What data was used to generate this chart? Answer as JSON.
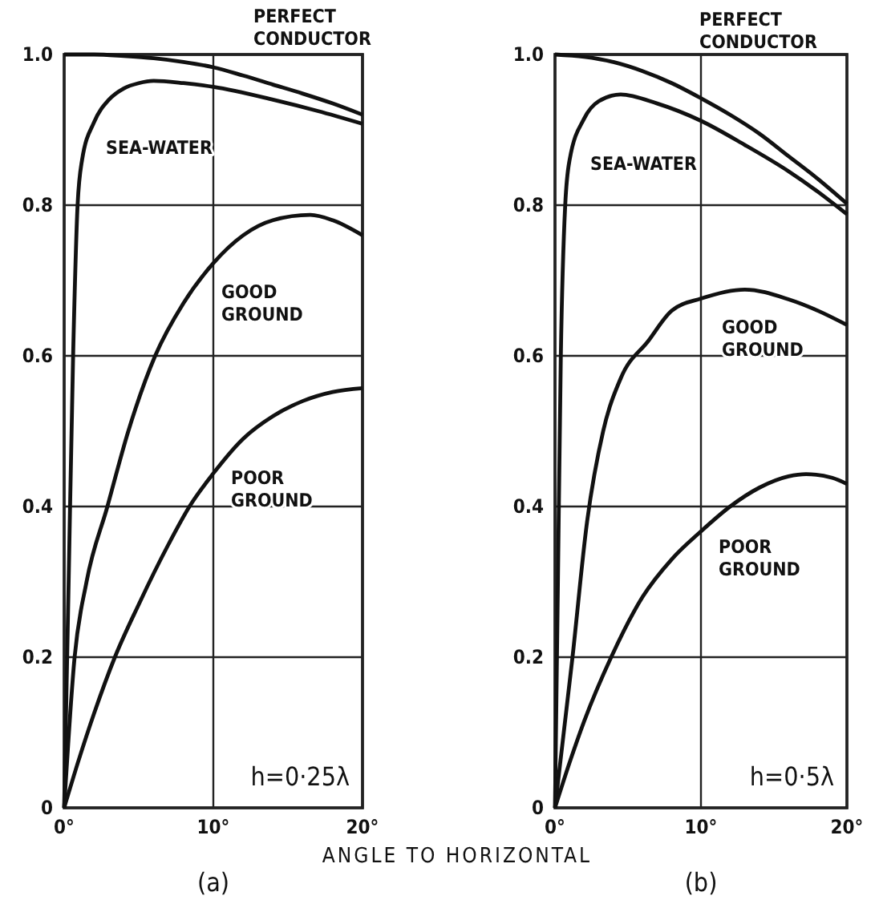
{
  "chart_data": [
    {
      "type": "line",
      "title": "(a)",
      "xlabel": "ANGLE TO HORIZONTAL",
      "xlim": [
        0,
        20
      ],
      "ylim": [
        0,
        1.0
      ],
      "xticks": [
        {
          "value": 0,
          "label": "0°"
        },
        {
          "value": 10,
          "label": "10°"
        },
        {
          "value": 20,
          "label": "20°"
        }
      ],
      "yticks": [
        0,
        0.2,
        0.4,
        0.6,
        0.8,
        {
          "value": 1.0,
          "label": "1.0"
        }
      ],
      "grid": true,
      "line_style": "solid",
      "annotations": [
        "h=0·25λ"
      ],
      "series": [
        {
          "name": "PERFECT CONDUCTOR",
          "color": "#111111",
          "x": [
            0,
            2,
            4,
            6,
            8,
            10,
            12,
            14,
            16,
            18,
            20
          ],
          "values": [
            1.0,
            1.0,
            0.998,
            0.995,
            0.99,
            0.983,
            0.972,
            0.96,
            0.948,
            0.935,
            0.92
          ]
        },
        {
          "name": "SEA-WATER",
          "color": "#111111",
          "x": [
            0,
            0.3,
            0.6,
            0.9,
            1.2,
            2,
            3,
            4,
            5,
            6,
            8,
            10,
            14,
            17,
            20
          ],
          "values": [
            0,
            0.3,
            0.6,
            0.8,
            0.86,
            0.91,
            0.94,
            0.955,
            0.962,
            0.965,
            0.962,
            0.957,
            0.94,
            0.925,
            0.908
          ]
        },
        {
          "name": "GOOD GROUND",
          "color": "#111111",
          "x": [
            0,
            0.7,
            1.5,
            2.9,
            4.3,
            6.1,
            8,
            10,
            12,
            14,
            16.5,
            18,
            20
          ],
          "values": [
            0,
            0.2,
            0.3,
            0.4,
            0.5,
            0.6,
            0.67,
            0.723,
            0.76,
            0.78,
            0.787,
            0.78,
            0.76
          ]
        },
        {
          "name": "POOR GROUND",
          "color": "#111111",
          "x": [
            0,
            1,
            2,
            3.4,
            5,
            7,
            8.4,
            10,
            12,
            14,
            16,
            18,
            20
          ],
          "values": [
            0,
            0.065,
            0.125,
            0.2,
            0.27,
            0.35,
            0.4,
            0.444,
            0.49,
            0.52,
            0.54,
            0.552,
            0.557
          ]
        }
      ]
    },
    {
      "type": "line",
      "title": "(b)",
      "xlim": [
        0,
        20
      ],
      "ylim": [
        0,
        1.0
      ],
      "xticks": [
        {
          "value": 0,
          "label": "0°"
        },
        {
          "value": 10,
          "label": "10°"
        },
        {
          "value": 20,
          "label": "20°"
        }
      ],
      "yticks": [
        0,
        0.2,
        0.4,
        0.6,
        0.8,
        {
          "value": 1.0,
          "label": "1.0"
        }
      ],
      "grid": true,
      "line_style": "solid",
      "annotations": [
        "h=0·5λ"
      ],
      "series": [
        {
          "name": "PERFECT CONDUCTOR",
          "color": "#111111",
          "x": [
            0,
            2,
            4,
            6,
            8,
            10,
            12,
            14,
            16,
            18,
            20
          ],
          "values": [
            1.0,
            0.997,
            0.99,
            0.978,
            0.962,
            0.942,
            0.92,
            0.895,
            0.865,
            0.835,
            0.802
          ]
        },
        {
          "name": "SEA-WATER",
          "color": "#111111",
          "x": [
            0,
            0.2,
            0.4,
            0.7,
            1,
            2,
            3,
            4.5,
            7,
            10,
            13,
            16,
            18,
            20
          ],
          "values": [
            0,
            0.3,
            0.6,
            0.8,
            0.86,
            0.915,
            0.938,
            0.947,
            0.935,
            0.912,
            0.88,
            0.845,
            0.818,
            0.788
          ]
        },
        {
          "name": "GOOD GROUND",
          "color": "#111111",
          "x": [
            0,
            1.2,
            2.2,
            3.3,
            4.5,
            6.4,
            8,
            10,
            13,
            16,
            18,
            20
          ],
          "values": [
            0,
            0.2,
            0.38,
            0.5,
            0.57,
            0.62,
            0.66,
            0.676,
            0.688,
            0.675,
            0.66,
            0.641
          ]
        },
        {
          "name": "POOR GROUND",
          "color": "#111111",
          "x": [
            0,
            1,
            2,
            3.85,
            6,
            8,
            10,
            12,
            14,
            16,
            17.2,
            19,
            20
          ],
          "values": [
            0,
            0.06,
            0.115,
            0.2,
            0.28,
            0.33,
            0.367,
            0.4,
            0.425,
            0.44,
            0.443,
            0.438,
            0.43
          ]
        }
      ]
    }
  ]
}
